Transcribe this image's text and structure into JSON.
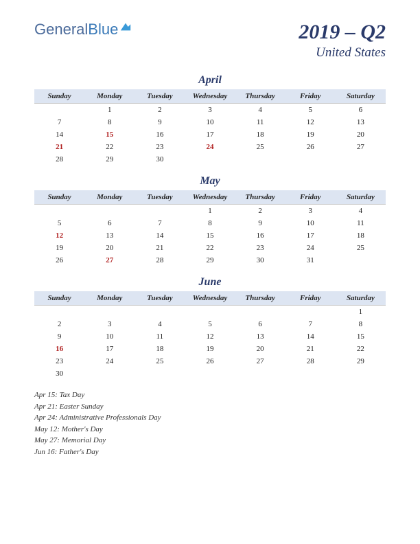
{
  "logo": {
    "text1": "General",
    "text2": "Blue"
  },
  "title": {
    "quarter": "2019 – Q2",
    "country": "United States"
  },
  "day_headers": [
    "Sunday",
    "Monday",
    "Tuesday",
    "Wednesday",
    "Thursday",
    "Friday",
    "Saturday"
  ],
  "colors": {
    "header_bg": "#dde5f2",
    "title_color": "#2a3a6a",
    "holiday_color": "#b02020"
  },
  "months": [
    {
      "name": "April",
      "weeks": [
        [
          {
            "d": ""
          },
          {
            "d": "1"
          },
          {
            "d": "2"
          },
          {
            "d": "3"
          },
          {
            "d": "4"
          },
          {
            "d": "5"
          },
          {
            "d": "6"
          }
        ],
        [
          {
            "d": "7"
          },
          {
            "d": "8"
          },
          {
            "d": "9"
          },
          {
            "d": "10"
          },
          {
            "d": "11"
          },
          {
            "d": "12"
          },
          {
            "d": "13"
          }
        ],
        [
          {
            "d": "14"
          },
          {
            "d": "15",
            "h": true
          },
          {
            "d": "16"
          },
          {
            "d": "17"
          },
          {
            "d": "18"
          },
          {
            "d": "19"
          },
          {
            "d": "20"
          }
        ],
        [
          {
            "d": "21",
            "h": true
          },
          {
            "d": "22"
          },
          {
            "d": "23"
          },
          {
            "d": "24",
            "h": true
          },
          {
            "d": "25"
          },
          {
            "d": "26"
          },
          {
            "d": "27"
          }
        ],
        [
          {
            "d": "28"
          },
          {
            "d": "29"
          },
          {
            "d": "30"
          },
          {
            "d": ""
          },
          {
            "d": ""
          },
          {
            "d": ""
          },
          {
            "d": ""
          }
        ]
      ]
    },
    {
      "name": "May",
      "weeks": [
        [
          {
            "d": ""
          },
          {
            "d": ""
          },
          {
            "d": ""
          },
          {
            "d": "1"
          },
          {
            "d": "2"
          },
          {
            "d": "3"
          },
          {
            "d": "4"
          }
        ],
        [
          {
            "d": "5"
          },
          {
            "d": "6"
          },
          {
            "d": "7"
          },
          {
            "d": "8"
          },
          {
            "d": "9"
          },
          {
            "d": "10"
          },
          {
            "d": "11"
          }
        ],
        [
          {
            "d": "12",
            "h": true
          },
          {
            "d": "13"
          },
          {
            "d": "14"
          },
          {
            "d": "15"
          },
          {
            "d": "16"
          },
          {
            "d": "17"
          },
          {
            "d": "18"
          }
        ],
        [
          {
            "d": "19"
          },
          {
            "d": "20"
          },
          {
            "d": "21"
          },
          {
            "d": "22"
          },
          {
            "d": "23"
          },
          {
            "d": "24"
          },
          {
            "d": "25"
          }
        ],
        [
          {
            "d": "26"
          },
          {
            "d": "27",
            "h": true
          },
          {
            "d": "28"
          },
          {
            "d": "29"
          },
          {
            "d": "30"
          },
          {
            "d": "31"
          },
          {
            "d": ""
          }
        ]
      ]
    },
    {
      "name": "June",
      "weeks": [
        [
          {
            "d": ""
          },
          {
            "d": ""
          },
          {
            "d": ""
          },
          {
            "d": ""
          },
          {
            "d": ""
          },
          {
            "d": ""
          },
          {
            "d": "1"
          }
        ],
        [
          {
            "d": "2"
          },
          {
            "d": "3"
          },
          {
            "d": "4"
          },
          {
            "d": "5"
          },
          {
            "d": "6"
          },
          {
            "d": "7"
          },
          {
            "d": "8"
          }
        ],
        [
          {
            "d": "9"
          },
          {
            "d": "10"
          },
          {
            "d": "11"
          },
          {
            "d": "12"
          },
          {
            "d": "13"
          },
          {
            "d": "14"
          },
          {
            "d": "15"
          }
        ],
        [
          {
            "d": "16",
            "h": true
          },
          {
            "d": "17"
          },
          {
            "d": "18"
          },
          {
            "d": "19"
          },
          {
            "d": "20"
          },
          {
            "d": "21"
          },
          {
            "d": "22"
          }
        ],
        [
          {
            "d": "23"
          },
          {
            "d": "24"
          },
          {
            "d": "25"
          },
          {
            "d": "26"
          },
          {
            "d": "27"
          },
          {
            "d": "28"
          },
          {
            "d": "29"
          }
        ],
        [
          {
            "d": "30"
          },
          {
            "d": ""
          },
          {
            "d": ""
          },
          {
            "d": ""
          },
          {
            "d": ""
          },
          {
            "d": ""
          },
          {
            "d": ""
          }
        ]
      ]
    }
  ],
  "holidays": [
    "Apr 15: Tax Day",
    "Apr 21: Easter Sunday",
    "Apr 24: Administrative Professionals Day",
    "May 12: Mother's Day",
    "May 27: Memorial Day",
    "Jun 16: Father's Day"
  ]
}
